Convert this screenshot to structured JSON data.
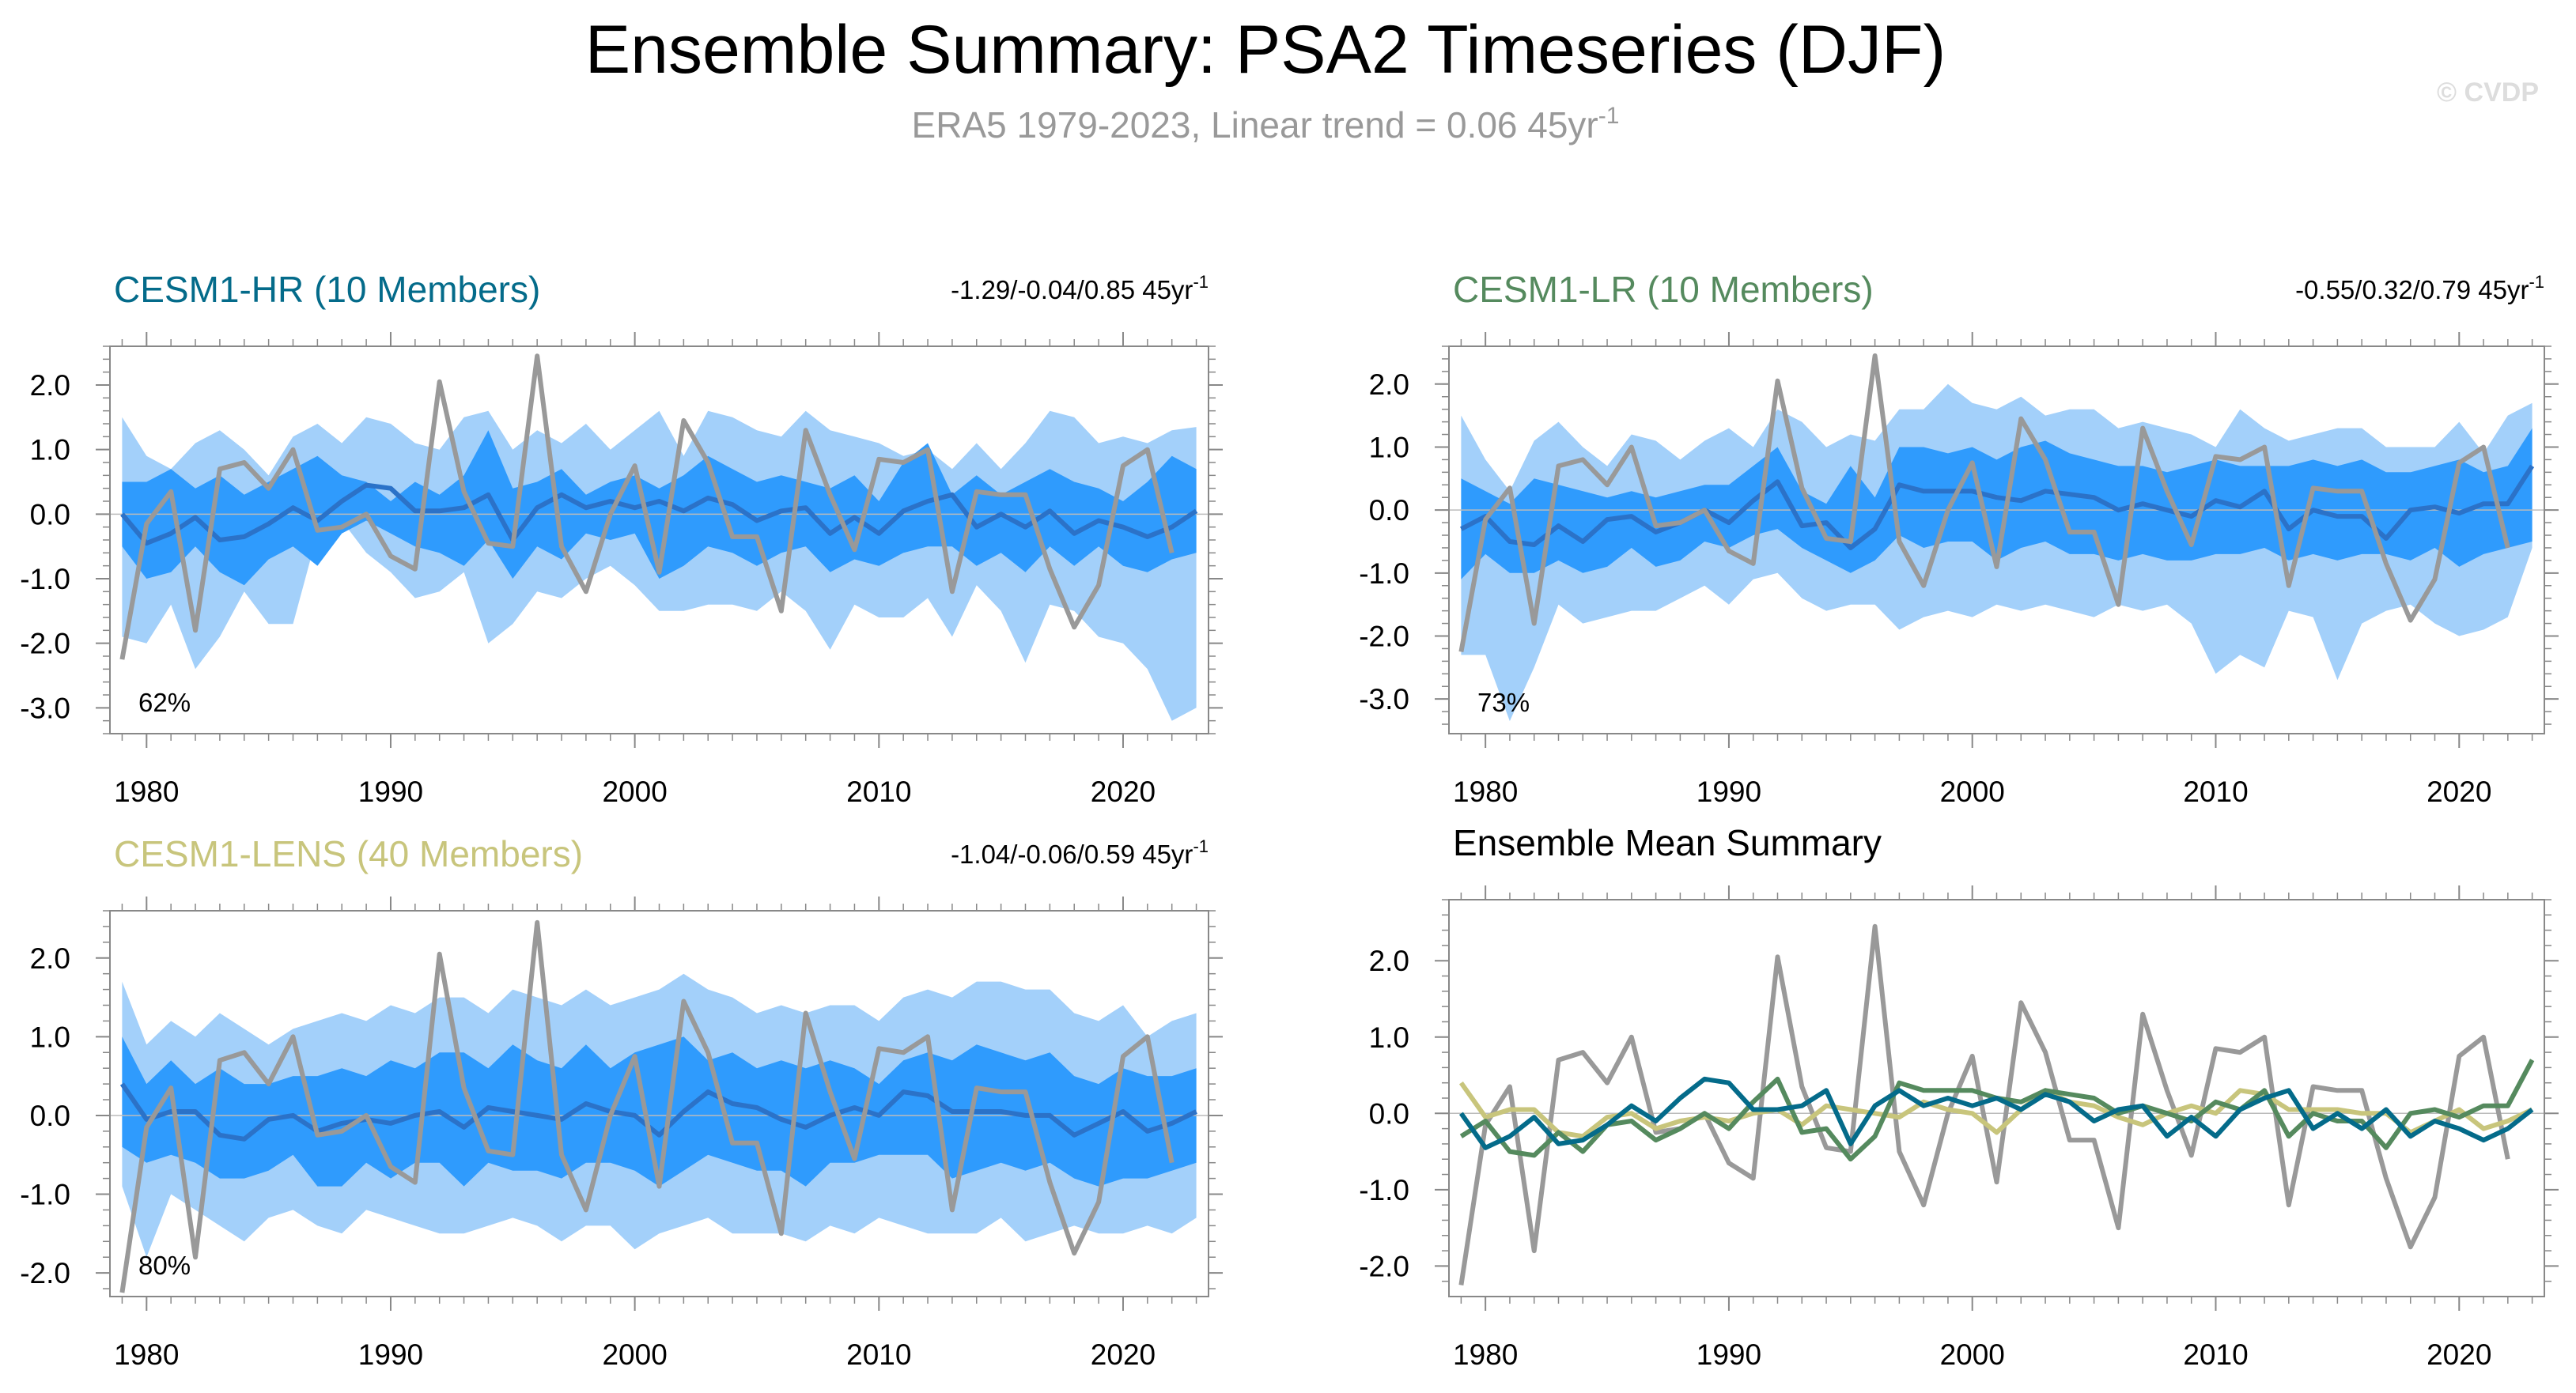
{
  "header": {
    "title": "Ensemble Summary: PSA2 Timeseries (DJF)",
    "subtitle_main": "ERA5 1979-2023, Linear trend = 0.06 45yr",
    "subtitle_sup": "-1",
    "watermark": "© CVDP"
  },
  "colors": {
    "band_outer": "#a3d0fa",
    "band_inner": "#2f9bfd",
    "ens_mean": "#2b72c8",
    "obs": "#999999",
    "hr": "#046b8a",
    "lr": "#558a5e",
    "lens": "#c8c57c",
    "axis": "#888888",
    "zero": "#bbbbbb"
  },
  "chart_data": [
    {
      "id": "hr",
      "type": "line",
      "title": "CESM1-HR (10 Members)",
      "title_color": "#046b8a",
      "trend_text": "-1.29/-0.04/0.85 45yr",
      "trend_sup": "-1",
      "pct_label": "62%",
      "ylim": [
        -3.4,
        2.6
      ],
      "yticks": [
        2.0,
        1.0,
        0.0,
        -1.0,
        -2.0,
        -3.0
      ],
      "yticklabels": [
        "2.0",
        "1.0",
        "0.0",
        "-1.0",
        "-2.0",
        "-3.0"
      ],
      "xlim": [
        1978.5,
        2023.5
      ],
      "xticks": [
        1980,
        1990,
        2000,
        2010,
        2020
      ],
      "xticklabels": [
        "1980",
        "1990",
        "2000",
        "2010",
        "2020"
      ],
      "years_start": 1979,
      "outer_hi": [
        1.5,
        0.9,
        0.7,
        1.1,
        1.3,
        1.0,
        0.6,
        1.2,
        1.4,
        1.1,
        1.5,
        1.4,
        1.1,
        1.0,
        1.5,
        1.6,
        1.0,
        1.3,
        1.1,
        1.4,
        1.0,
        1.3,
        1.6,
        0.9,
        1.6,
        1.5,
        1.3,
        1.2,
        1.6,
        1.3,
        1.2,
        1.1,
        0.9,
        1.0,
        0.7,
        1.1,
        0.7,
        1.1,
        1.6,
        1.5,
        1.1,
        1.2,
        1.1,
        1.3,
        1.35
      ],
      "inner_hi": [
        0.5,
        0.5,
        0.7,
        0.4,
        0.6,
        0.3,
        0.5,
        0.7,
        0.9,
        0.6,
        0.5,
        0.2,
        0.5,
        0.3,
        0.6,
        1.3,
        0.4,
        0.5,
        0.7,
        0.3,
        0.5,
        0.6,
        0.4,
        0.6,
        0.9,
        0.7,
        0.5,
        0.6,
        0.5,
        0.4,
        0.6,
        0.2,
        0.8,
        1.1,
        0.3,
        0.6,
        0.3,
        0.5,
        0.7,
        0.5,
        0.4,
        0.2,
        0.5,
        0.9,
        0.7
      ],
      "ens_mean": [
        0.0,
        -0.45,
        -0.3,
        -0.05,
        -0.4,
        -0.35,
        -0.15,
        0.1,
        -0.1,
        0.2,
        0.45,
        0.4,
        0.05,
        0.05,
        0.1,
        0.3,
        -0.4,
        0.1,
        0.3,
        0.1,
        0.2,
        0.1,
        0.2,
        0.05,
        0.25,
        0.15,
        -0.1,
        0.05,
        0.1,
        -0.3,
        -0.05,
        -0.3,
        0.05,
        0.2,
        0.3,
        -0.2,
        0.0,
        -0.2,
        0.05,
        -0.3,
        -0.1,
        -0.2,
        -0.35,
        -0.2,
        0.05
      ],
      "inner_lo": [
        -0.5,
        -1.0,
        -0.9,
        -0.5,
        -0.9,
        -1.1,
        -0.7,
        -0.5,
        -0.8,
        -0.3,
        -0.1,
        -0.3,
        -0.5,
        -0.6,
        -0.8,
        -0.4,
        -1.0,
        -0.5,
        -0.7,
        -0.3,
        -0.4,
        -0.3,
        -1.0,
        -0.8,
        -0.5,
        -0.6,
        -0.8,
        -0.6,
        -0.5,
        -0.9,
        -0.7,
        -0.8,
        -0.6,
        -0.5,
        -0.5,
        -0.8,
        -0.6,
        -0.9,
        -0.5,
        -0.8,
        -0.5,
        -0.8,
        -0.9,
        -0.7,
        -0.6
      ],
      "outer_lo": [
        -1.9,
        -2.0,
        -1.4,
        -2.4,
        -1.9,
        -1.2,
        -1.7,
        -1.7,
        -0.3,
        -0.1,
        -0.6,
        -0.9,
        -1.3,
        -1.2,
        -0.9,
        -2.0,
        -1.7,
        -1.2,
        -1.3,
        -1.0,
        -0.8,
        -1.1,
        -1.5,
        -1.5,
        -1.4,
        -1.4,
        -1.5,
        -1.2,
        -1.5,
        -2.1,
        -1.4,
        -1.6,
        -1.6,
        -1.3,
        -1.9,
        -1.1,
        -1.5,
        -2.3,
        -1.4,
        -1.5,
        -1.9,
        -2.0,
        -2.4,
        -3.2,
        -3.0
      ],
      "obs": [
        -2.25,
        -0.15,
        0.35,
        -1.8,
        0.7,
        0.8,
        0.4,
        1.0,
        -0.25,
        -0.2,
        0.0,
        -0.65,
        -0.85,
        2.05,
        0.35,
        -0.45,
        -0.5,
        2.45,
        -0.5,
        -1.2,
        0.0,
        0.75,
        -0.9,
        1.45,
        0.8,
        -0.35,
        -0.35,
        -1.5,
        1.3,
        0.3,
        -0.55,
        0.85,
        0.8,
        1.0,
        -1.2,
        0.35,
        0.3,
        0.3,
        -0.85,
        -1.75,
        -1.1,
        0.75,
        1.0,
        -0.6,
        null
      ]
    },
    {
      "id": "lr",
      "type": "line",
      "title": "CESM1-LR (10 Members)",
      "title_color": "#558a5e",
      "trend_text": "-0.55/0.32/0.79 45yr",
      "trend_sup": "-1",
      "pct_label": "73%",
      "ylim": [
        -3.55,
        2.6
      ],
      "yticks": [
        2.0,
        1.0,
        0.0,
        -1.0,
        -2.0,
        -3.0
      ],
      "yticklabels": [
        "2.0",
        "1.0",
        "0.0",
        "-1.0",
        "-2.0",
        "-3.0"
      ],
      "xlim": [
        1978.5,
        2023.5
      ],
      "xticks": [
        1980,
        1990,
        2000,
        2010,
        2020
      ],
      "xticklabels": [
        "1980",
        "1990",
        "2000",
        "2010",
        "2020"
      ],
      "years_start": 1979,
      "outer_hi": [
        1.5,
        0.8,
        0.3,
        1.1,
        1.4,
        1.0,
        0.7,
        1.2,
        1.1,
        0.8,
        1.1,
        1.3,
        1.0,
        1.6,
        1.4,
        1.0,
        1.2,
        1.1,
        1.6,
        1.6,
        2.0,
        1.7,
        1.6,
        1.8,
        1.5,
        1.6,
        1.6,
        1.3,
        1.4,
        1.3,
        1.2,
        1.0,
        1.6,
        1.3,
        1.1,
        1.2,
        1.3,
        1.3,
        1.0,
        1.0,
        1.0,
        1.4,
        0.9,
        1.5,
        1.7
      ],
      "inner_hi": [
        0.5,
        0.3,
        0.1,
        0.5,
        0.4,
        0.3,
        0.2,
        0.3,
        0.2,
        0.3,
        0.4,
        0.4,
        0.7,
        1.0,
        0.3,
        0.1,
        0.7,
        0.2,
        1.0,
        1.0,
        0.9,
        1.0,
        0.8,
        1.0,
        1.1,
        0.9,
        0.8,
        0.7,
        0.7,
        0.6,
        0.7,
        0.8,
        0.7,
        0.7,
        0.7,
        0.8,
        0.7,
        0.8,
        0.6,
        0.6,
        0.7,
        0.8,
        0.6,
        0.7,
        1.3
      ],
      "ens_mean": [
        -0.3,
        -0.1,
        -0.5,
        -0.55,
        -0.25,
        -0.5,
        -0.15,
        -0.1,
        -0.35,
        -0.2,
        0.0,
        -0.2,
        0.15,
        0.45,
        -0.25,
        -0.2,
        -0.6,
        -0.3,
        0.4,
        0.3,
        0.3,
        0.3,
        0.2,
        0.15,
        0.3,
        0.25,
        0.2,
        0.0,
        0.1,
        0.0,
        -0.1,
        0.15,
        0.05,
        0.3,
        -0.3,
        0.0,
        -0.1,
        -0.1,
        -0.45,
        0.0,
        0.05,
        -0.05,
        0.1,
        0.1,
        0.7
      ],
      "inner_lo": [
        -1.1,
        -0.7,
        -1.0,
        -1.0,
        -0.8,
        -1.0,
        -0.9,
        -0.6,
        -0.9,
        -0.8,
        -0.5,
        -0.6,
        -0.4,
        -0.3,
        -0.6,
        -0.8,
        -1.0,
        -0.8,
        -0.4,
        -0.6,
        -0.5,
        -0.5,
        -0.8,
        -0.6,
        -0.5,
        -0.7,
        -0.7,
        -0.8,
        -0.7,
        -0.8,
        -0.8,
        -0.7,
        -0.7,
        -0.6,
        -0.8,
        -0.7,
        -0.8,
        -0.7,
        -0.7,
        -0.8,
        -0.6,
        -0.9,
        -0.7,
        -0.6,
        -0.5
      ],
      "outer_lo": [
        -2.3,
        -2.3,
        -3.35,
        -2.5,
        -1.5,
        -1.8,
        -1.7,
        -1.6,
        -1.6,
        -1.4,
        -1.2,
        -1.5,
        -1.1,
        -1.0,
        -1.4,
        -1.6,
        -1.5,
        -1.5,
        -1.9,
        -1.7,
        -1.6,
        -1.7,
        -1.5,
        -1.6,
        -1.5,
        -1.6,
        -1.7,
        -1.5,
        -1.6,
        -1.5,
        -1.8,
        -2.6,
        -2.3,
        -2.5,
        -1.6,
        -1.7,
        -2.7,
        -1.8,
        -1.6,
        -1.5,
        -1.8,
        -2.0,
        -1.9,
        -1.7,
        -0.6
      ],
      "obs": [
        -2.25,
        -0.15,
        0.35,
        -1.8,
        0.7,
        0.8,
        0.4,
        1.0,
        -0.25,
        -0.2,
        0.0,
        -0.65,
        -0.85,
        2.05,
        0.35,
        -0.45,
        -0.5,
        2.45,
        -0.5,
        -1.2,
        0.0,
        0.75,
        -0.9,
        1.45,
        0.8,
        -0.35,
        -0.35,
        -1.5,
        1.3,
        0.3,
        -0.55,
        0.85,
        0.8,
        1.0,
        -1.2,
        0.35,
        0.3,
        0.3,
        -0.85,
        -1.75,
        -1.1,
        0.75,
        1.0,
        -0.6,
        null
      ]
    },
    {
      "id": "lens",
      "type": "line",
      "title": "CESM1-LENS (40 Members)",
      "title_color": "#c8c57c",
      "trend_text": "-1.04/-0.06/0.59 45yr",
      "trend_sup": "-1",
      "pct_label": "80%",
      "ylim": [
        -2.3,
        2.6
      ],
      "yticks": [
        2.0,
        1.0,
        0.0,
        -1.0,
        -2.0
      ],
      "yticklabels": [
        "2.0",
        "1.0",
        "0.0",
        "-1.0",
        "-2.0"
      ],
      "xlim": [
        1978.5,
        2023.5
      ],
      "xticks": [
        1980,
        1990,
        2000,
        2010,
        2020
      ],
      "xticklabels": [
        "1980",
        "1990",
        "2000",
        "2010",
        "2020"
      ],
      "years_start": 1979,
      "outer_hi": [
        1.7,
        0.9,
        1.2,
        1.0,
        1.3,
        1.1,
        0.9,
        1.1,
        1.2,
        1.3,
        1.2,
        1.4,
        1.3,
        1.5,
        1.5,
        1.3,
        1.6,
        1.5,
        1.4,
        1.6,
        1.4,
        1.5,
        1.6,
        1.8,
        1.6,
        1.5,
        1.3,
        1.4,
        1.3,
        1.4,
        1.4,
        1.2,
        1.5,
        1.6,
        1.5,
        1.7,
        1.7,
        1.6,
        1.6,
        1.3,
        1.2,
        1.4,
        1.0,
        1.2,
        1.3
      ],
      "inner_hi": [
        1.0,
        0.4,
        0.7,
        0.4,
        0.6,
        0.4,
        0.4,
        0.5,
        0.5,
        0.6,
        0.5,
        0.7,
        0.6,
        0.8,
        0.8,
        0.6,
        0.9,
        0.7,
        0.6,
        0.9,
        0.6,
        0.8,
        0.9,
        1.0,
        0.7,
        0.8,
        0.6,
        0.7,
        0.6,
        0.7,
        0.6,
        0.4,
        0.7,
        0.8,
        0.7,
        0.9,
        0.8,
        0.7,
        0.8,
        0.5,
        0.4,
        0.6,
        0.5,
        0.5,
        0.6
      ],
      "ens_mean": [
        0.4,
        -0.05,
        0.05,
        0.05,
        -0.25,
        -0.3,
        -0.05,
        0.0,
        -0.2,
        -0.1,
        -0.05,
        -0.1,
        0.0,
        0.05,
        -0.15,
        0.1,
        0.05,
        0.0,
        -0.05,
        0.15,
        0.05,
        0.0,
        -0.25,
        0.05,
        0.3,
        0.15,
        0.1,
        -0.05,
        -0.15,
        0.0,
        0.1,
        0.0,
        0.3,
        0.25,
        0.05,
        0.05,
        0.05,
        0.0,
        0.0,
        -0.25,
        -0.1,
        0.05,
        -0.2,
        -0.1,
        0.05
      ],
      "inner_lo": [
        -0.4,
        -0.6,
        -0.5,
        -0.6,
        -0.8,
        -0.8,
        -0.7,
        -0.5,
        -0.9,
        -0.9,
        -0.6,
        -0.8,
        -0.6,
        -0.6,
        -0.9,
        -0.6,
        -0.7,
        -0.7,
        -0.8,
        -0.6,
        -0.6,
        -0.7,
        -0.9,
        -0.7,
        -0.5,
        -0.6,
        -0.7,
        -0.7,
        -0.9,
        -0.6,
        -0.6,
        -0.5,
        -0.5,
        -0.5,
        -0.8,
        -0.7,
        -0.6,
        -0.7,
        -0.6,
        -0.8,
        -0.9,
        -0.8,
        -0.8,
        -0.7,
        -0.6
      ],
      "outer_lo": [
        -0.9,
        -1.8,
        -1.0,
        -1.2,
        -1.4,
        -1.6,
        -1.3,
        -1.2,
        -1.4,
        -1.5,
        -1.2,
        -1.3,
        -1.4,
        -1.5,
        -1.5,
        -1.4,
        -1.3,
        -1.4,
        -1.6,
        -1.4,
        -1.4,
        -1.7,
        -1.5,
        -1.4,
        -1.3,
        -1.5,
        -1.5,
        -1.5,
        -1.6,
        -1.4,
        -1.5,
        -1.3,
        -1.4,
        -1.5,
        -1.5,
        -1.5,
        -1.3,
        -1.6,
        -1.5,
        -1.4,
        -1.5,
        -1.5,
        -1.4,
        -1.5,
        -1.3
      ],
      "obs": [
        -2.25,
        -0.15,
        0.35,
        -1.8,
        0.7,
        0.8,
        0.4,
        1.0,
        -0.25,
        -0.2,
        0.0,
        -0.65,
        -0.85,
        2.05,
        0.35,
        -0.45,
        -0.5,
        2.45,
        -0.5,
        -1.2,
        0.0,
        0.75,
        -0.9,
        1.45,
        0.8,
        -0.35,
        -0.35,
        -1.5,
        1.3,
        0.3,
        -0.55,
        0.85,
        0.8,
        1.0,
        -1.2,
        0.35,
        0.3,
        0.3,
        -0.85,
        -1.75,
        -1.1,
        0.75,
        1.0,
        -0.6,
        null
      ]
    },
    {
      "id": "summary",
      "type": "line",
      "title": "Ensemble Mean Summary",
      "title_color": "#000000",
      "ylim": [
        -2.4,
        2.8
      ],
      "yticks": [
        2.0,
        1.0,
        0.0,
        -1.0,
        -2.0
      ],
      "yticklabels": [
        "2.0",
        "1.0",
        "0.0",
        "-1.0",
        "-2.0"
      ],
      "xlim": [
        1978.5,
        2023.5
      ],
      "xticks": [
        1980,
        1990,
        2000,
        2010,
        2020
      ],
      "xticklabels": [
        "1980",
        "1990",
        "2000",
        "2010",
        "2020"
      ],
      "years_start": 1979,
      "series": [
        {
          "name": "ERA5",
          "color": "#999999",
          "values": [
            -2.25,
            -0.15,
            0.35,
            -1.8,
            0.7,
            0.8,
            0.4,
            1.0,
            -0.25,
            -0.2,
            0.0,
            -0.65,
            -0.85,
            2.05,
            0.35,
            -0.45,
            -0.5,
            2.45,
            -0.5,
            -1.2,
            0.0,
            0.75,
            -0.9,
            1.45,
            0.8,
            -0.35,
            -0.35,
            -1.5,
            1.3,
            0.3,
            -0.55,
            0.85,
            0.8,
            1.0,
            -1.2,
            0.35,
            0.3,
            0.3,
            -0.85,
            -1.75,
            -1.1,
            0.75,
            1.0,
            -0.6,
            null
          ]
        },
        {
          "name": "CESM1-LENS",
          "color": "#c8c57c",
          "values": [
            0.4,
            -0.05,
            0.05,
            0.05,
            -0.25,
            -0.3,
            -0.05,
            0.0,
            -0.2,
            -0.1,
            -0.05,
            -0.1,
            0.0,
            0.05,
            -0.15,
            0.1,
            0.05,
            0.0,
            -0.05,
            0.15,
            0.05,
            0.0,
            -0.25,
            0.05,
            0.3,
            0.15,
            0.1,
            -0.05,
            -0.15,
            0.0,
            0.1,
            0.0,
            0.3,
            0.25,
            0.05,
            0.05,
            0.05,
            0.0,
            0.0,
            -0.25,
            -0.1,
            0.05,
            -0.2,
            -0.1,
            0.05
          ]
        },
        {
          "name": "CESM1-LR",
          "color": "#558a5e",
          "values": [
            -0.3,
            -0.1,
            -0.5,
            -0.55,
            -0.25,
            -0.5,
            -0.15,
            -0.1,
            -0.35,
            -0.2,
            0.0,
            -0.2,
            0.15,
            0.45,
            -0.25,
            -0.2,
            -0.6,
            -0.3,
            0.4,
            0.3,
            0.3,
            0.3,
            0.2,
            0.15,
            0.3,
            0.25,
            0.2,
            0.0,
            0.1,
            0.0,
            -0.1,
            0.15,
            0.05,
            0.3,
            -0.3,
            0.0,
            -0.1,
            -0.1,
            -0.45,
            0.0,
            0.05,
            -0.05,
            0.1,
            0.1,
            0.7
          ]
        },
        {
          "name": "CESM1-HR",
          "color": "#046b8a",
          "values": [
            0.0,
            -0.45,
            -0.3,
            -0.05,
            -0.4,
            -0.35,
            -0.15,
            0.1,
            -0.1,
            0.2,
            0.45,
            0.4,
            0.05,
            0.05,
            0.1,
            0.3,
            -0.4,
            0.1,
            0.3,
            0.1,
            0.2,
            0.1,
            0.2,
            0.05,
            0.25,
            0.15,
            -0.1,
            0.05,
            0.1,
            -0.3,
            -0.05,
            -0.3,
            0.05,
            0.2,
            0.3,
            -0.2,
            0.0,
            -0.2,
            0.05,
            -0.3,
            -0.1,
            -0.2,
            -0.35,
            -0.2,
            0.05
          ]
        }
      ]
    }
  ]
}
